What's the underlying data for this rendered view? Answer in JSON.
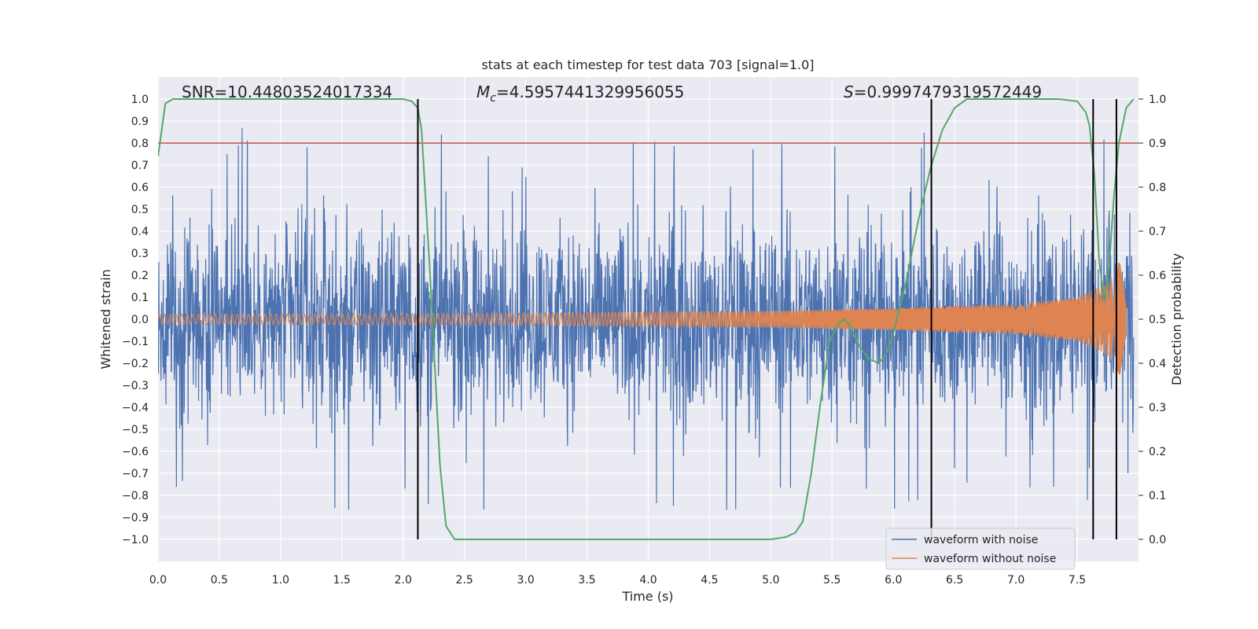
{
  "chart_data": {
    "type": "line",
    "title": "stats at each timestep for test data 703 [signal=1.0]",
    "xlabel": "Time (s)",
    "ylabel": "Whitened strain",
    "ylabel_right": "Detection probability",
    "xlim": [
      0.0,
      8.0
    ],
    "ylim": [
      -1.1,
      1.1
    ],
    "ylim_right": [
      -0.05,
      1.05
    ],
    "xticks": [
      "0.0",
      "0.5",
      "1.0",
      "1.5",
      "2.0",
      "2.5",
      "3.0",
      "3.5",
      "4.0",
      "4.5",
      "5.0",
      "5.5",
      "6.0",
      "6.5",
      "7.0",
      "7.5"
    ],
    "yticks": [
      "1.0",
      "0.9",
      "0.8",
      "0.7",
      "0.6",
      "0.5",
      "0.4",
      "0.3",
      "0.2",
      "0.1",
      "0.0",
      "−0.1",
      "−0.2",
      "−0.3",
      "−0.4",
      "−0.5",
      "−0.6",
      "−0.7",
      "−0.8",
      "−0.9",
      "−1.0"
    ],
    "yticks_right": [
      "1.0",
      "0.9",
      "0.8",
      "0.7",
      "0.6",
      "0.5",
      "0.4",
      "0.3",
      "0.2",
      "0.1",
      "0.0"
    ],
    "annotations": {
      "snr": "SNR=10.44803524017334",
      "mc_symbol": "M",
      "mc_sub": "c",
      "mc_value": "=4.5957441329956055",
      "s_symbol": "S",
      "s_value": "=0.9997479319572449"
    },
    "threshold": {
      "value": 0.9,
      "axis": "right",
      "color": "#c44e52"
    },
    "vlines": [
      2.12,
      6.31,
      7.63,
      7.82
    ],
    "series": [
      {
        "name": "waveform with noise",
        "color": "#4c72b0",
        "amplitude_range": [
          -0.98,
          0.9
        ]
      },
      {
        "name": "waveform without noise",
        "color": "#dd8452",
        "envelope": {
          "t": [
            0.0,
            3.0,
            5.0,
            6.0,
            7.0,
            7.5,
            7.7,
            7.8,
            7.85,
            7.9
          ],
          "amp": [
            0.022,
            0.028,
            0.038,
            0.05,
            0.07,
            0.1,
            0.15,
            0.2,
            0.26,
            0.05
          ]
        }
      },
      {
        "name": "detection probability",
        "color": "#55a868",
        "axis": "right",
        "x": [
          0.0,
          0.06,
          0.12,
          0.2,
          1.0,
          1.5,
          2.0,
          2.07,
          2.12,
          2.15,
          2.22,
          2.3,
          2.35,
          2.42,
          3.0,
          4.0,
          4.5,
          5.0,
          5.12,
          5.2,
          5.26,
          5.33,
          5.4,
          5.48,
          5.55,
          5.6,
          5.66,
          5.72,
          5.8,
          5.88,
          5.94,
          6.0,
          6.1,
          6.2,
          6.3,
          6.4,
          6.5,
          6.6,
          7.0,
          7.2,
          7.35,
          7.5,
          7.57,
          7.6,
          7.64,
          7.68,
          7.72,
          7.76,
          7.8,
          7.84,
          7.9,
          7.96
        ],
        "y": [
          0.87,
          0.99,
          1.0,
          1.0,
          1.0,
          1.0,
          1.0,
          0.995,
          0.98,
          0.93,
          0.6,
          0.17,
          0.03,
          0.0,
          0.0,
          0.0,
          0.0,
          0.0,
          0.005,
          0.015,
          0.04,
          0.15,
          0.3,
          0.45,
          0.49,
          0.5,
          0.48,
          0.44,
          0.41,
          0.4,
          0.42,
          0.47,
          0.58,
          0.72,
          0.84,
          0.93,
          0.98,
          1.0,
          1.0,
          1.0,
          1.0,
          0.995,
          0.97,
          0.94,
          0.83,
          0.63,
          0.545,
          0.62,
          0.78,
          0.9,
          0.98,
          1.0
        ]
      }
    ]
  }
}
